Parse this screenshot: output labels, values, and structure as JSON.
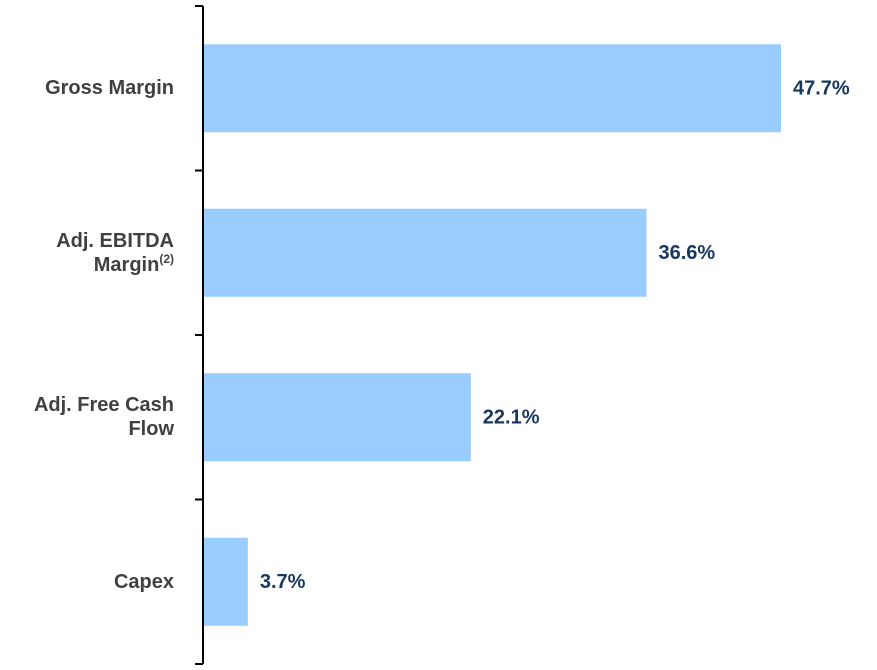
{
  "chart_data": {
    "type": "bar",
    "orientation": "horizontal",
    "categories": [
      "Gross Margin",
      "Adj. EBITDA Margin",
      "Adj. Free Cash Flow",
      "Capex"
    ],
    "category_notes": [
      null,
      "(2)",
      null,
      null
    ],
    "values": [
      47.7,
      36.6,
      22.1,
      3.7
    ],
    "value_labels": [
      "47.7%",
      "36.6%",
      "22.1%",
      "3.7%"
    ],
    "color": "#99ccff",
    "label_color": "#17375e"
  }
}
